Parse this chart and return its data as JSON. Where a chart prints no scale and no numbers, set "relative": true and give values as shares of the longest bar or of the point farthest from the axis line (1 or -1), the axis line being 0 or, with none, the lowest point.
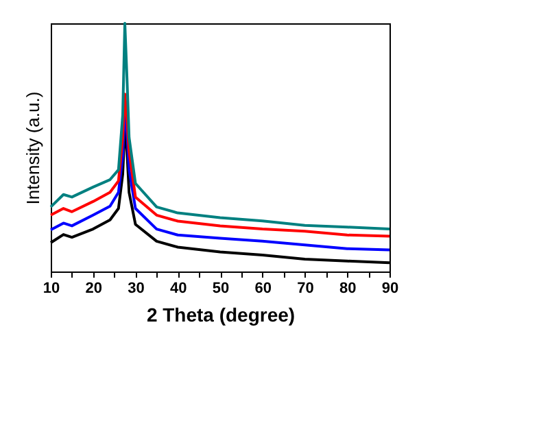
{
  "chart_data": {
    "type": "line",
    "xlabel": "2 Theta (degree)",
    "ylabel": "Intensity (a.u.)",
    "relative": true,
    "grid": false,
    "marker": "none",
    "line_style": "solid",
    "xlim": [
      10,
      90
    ],
    "xticks": [
      10,
      {
        "value": 15,
        "label": null
      },
      20,
      {
        "value": 25,
        "label": null
      },
      30,
      {
        "value": 35,
        "label": null
      },
      40,
      {
        "value": 45,
        "label": null
      },
      50,
      {
        "value": 55,
        "label": null
      },
      60,
      {
        "value": 65,
        "label": null
      },
      70,
      {
        "value": 75,
        "label": null
      },
      80,
      {
        "value": 85,
        "label": null
      },
      90
    ],
    "x": [
      10,
      13,
      15,
      20,
      24,
      26,
      27,
      27.5,
      28,
      28.5,
      30,
      35,
      40,
      50,
      60,
      70,
      80,
      90
    ],
    "series": [
      {
        "color": "#000000",
        "values": [
          0.116,
          0.149,
          0.138,
          0.171,
          0.208,
          0.254,
          0.392,
          0.586,
          0.484,
          0.319,
          0.19,
          0.122,
          0.098,
          0.079,
          0.066,
          0.05,
          0.042,
          0.035
        ]
      },
      {
        "color": "#0000ff",
        "values": [
          0.168,
          0.195,
          0.184,
          0.227,
          0.263,
          0.319,
          0.466,
          0.659,
          0.558,
          0.411,
          0.254,
          0.171,
          0.147,
          0.134,
          0.122,
          0.107,
          0.092,
          0.087
        ]
      },
      {
        "color": "#ff0000",
        "values": [
          0.227,
          0.254,
          0.241,
          0.282,
          0.319,
          0.365,
          0.54,
          0.715,
          0.613,
          0.484,
          0.3,
          0.227,
          0.203,
          0.184,
          0.171,
          0.162,
          0.147,
          0.142
        ]
      },
      {
        "color": "#008080",
        "values": [
          0.26,
          0.31,
          0.3,
          0.34,
          0.37,
          0.41,
          0.63,
          1.0,
          0.78,
          0.54,
          0.355,
          0.26,
          0.236,
          0.217,
          0.204,
          0.186,
          0.179,
          0.171
        ]
      }
    ]
  }
}
